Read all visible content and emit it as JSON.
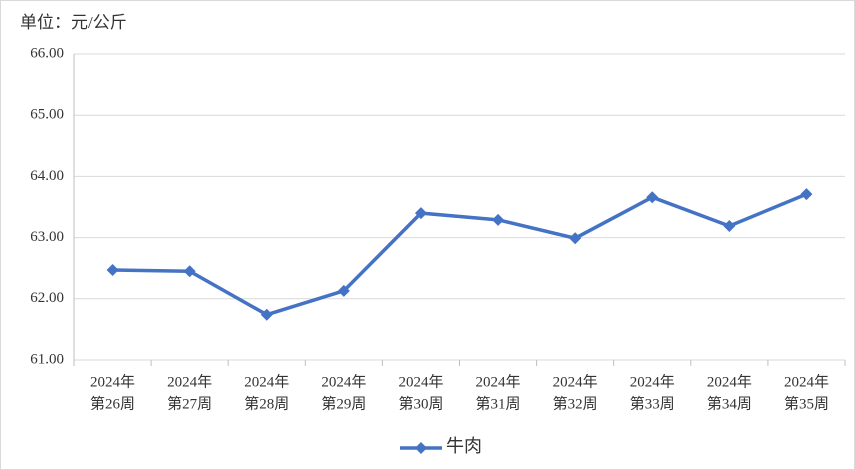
{
  "chart_data": {
    "type": "line",
    "title": "单位：元/公斤",
    "categories": [
      [
        "2024年",
        "第26周"
      ],
      [
        "2024年",
        "第27周"
      ],
      [
        "2024年",
        "第28周"
      ],
      [
        "2024年",
        "第29周"
      ],
      [
        "2024年",
        "第30周"
      ],
      [
        "2024年",
        "第31周"
      ],
      [
        "2024年",
        "第32周"
      ],
      [
        "2024年",
        "第33周"
      ],
      [
        "2024年",
        "第34周"
      ],
      [
        "2024年",
        "第35周"
      ]
    ],
    "series": [
      {
        "name": "牛肉",
        "color": "#4472c4",
        "values": [
          62.47,
          62.45,
          61.74,
          62.13,
          63.4,
          63.29,
          62.99,
          63.66,
          63.19,
          63.71
        ]
      }
    ],
    "ylim": [
      61,
      66
    ],
    "yticks": [
      {
        "value": 61,
        "label": "61.00"
      },
      {
        "value": 62,
        "label": "62.00"
      },
      {
        "value": 63,
        "label": "63.00"
      },
      {
        "value": 64,
        "label": "64.00"
      },
      {
        "value": 65,
        "label": "65.00"
      },
      {
        "value": 66,
        "label": "66.00"
      }
    ],
    "grid": true,
    "legend": "bottom"
  }
}
